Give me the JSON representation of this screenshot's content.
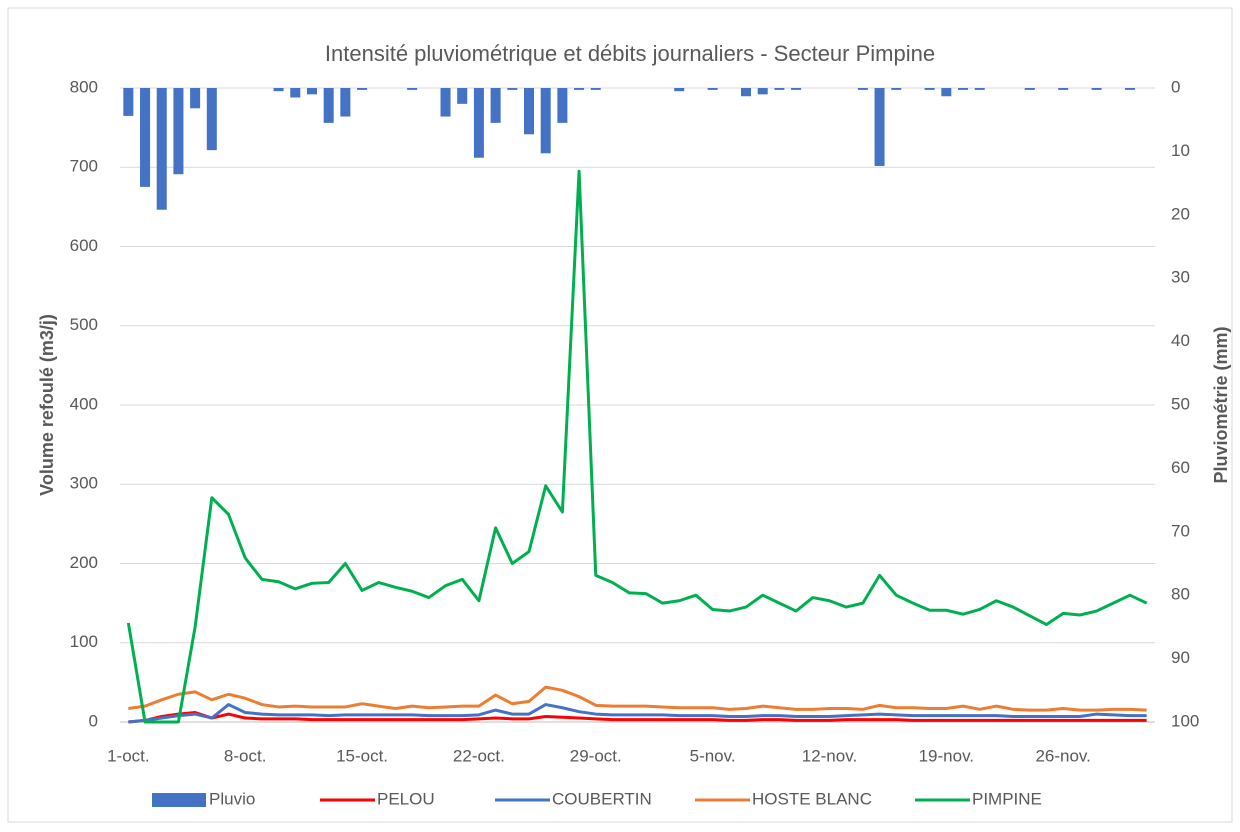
{
  "chart_data": {
    "type": "bar_line",
    "title": "Intensité pluviométrique et débits journaliers - Secteur Pimpine",
    "y_label": "Volume refoulé (m3/j)",
    "y2_label": "Pluviométrie (mm)",
    "categories": [
      "1-oct.",
      null,
      null,
      null,
      null,
      null,
      null,
      "8-oct.",
      null,
      null,
      null,
      null,
      null,
      null,
      "15-oct.",
      null,
      null,
      null,
      null,
      null,
      null,
      "22-oct.",
      null,
      null,
      null,
      null,
      null,
      null,
      "29-oct.",
      null,
      null,
      null,
      null,
      null,
      null,
      "5-nov.",
      null,
      null,
      null,
      null,
      null,
      null,
      "12-nov.",
      null,
      null,
      null,
      null,
      null,
      null,
      "19-nov.",
      null,
      null,
      null,
      null,
      null,
      null,
      "26-nov.",
      null,
      null,
      null,
      null,
      null
    ],
    "ylim": [
      0,
      800
    ],
    "yticks": [
      0,
      100,
      200,
      300,
      400,
      500,
      600,
      700,
      800
    ],
    "y2lim": [
      100,
      0
    ],
    "y2ticks": [
      0,
      10,
      20,
      30,
      40,
      50,
      60,
      70,
      80,
      90,
      100
    ],
    "grid": true,
    "legend": "bottom",
    "series": [
      {
        "name": "Pluvio",
        "type": "bar",
        "axis": "y2",
        "color": "#4472c4",
        "values": [
          4.4,
          15.6,
          19.2,
          13.6,
          3.2,
          9.8,
          0,
          0,
          0,
          0.5,
          1.5,
          1,
          5.5,
          4.5,
          0.3,
          0,
          0,
          0.3,
          0,
          4.5,
          2.5,
          11,
          5.5,
          0.3,
          7.3,
          10.3,
          5.5,
          0.3,
          0.3,
          0,
          0,
          0,
          0,
          0.5,
          0,
          0.3,
          0,
          1.3,
          1,
          0.3,
          0.3,
          0,
          0,
          0,
          0.3,
          12.3,
          0.3,
          0,
          0.3,
          1.3,
          0.3,
          0.3,
          0,
          0,
          0.3,
          0,
          0.3,
          0,
          0.3,
          0,
          0.3,
          0
        ]
      },
      {
        "name": "PELOU",
        "type": "line",
        "color": "#ff0000",
        "values": [
          0,
          2,
          7,
          10,
          12,
          5,
          10,
          5,
          4,
          4,
          4,
          3,
          3,
          3,
          3,
          3,
          3,
          3,
          3,
          3,
          3,
          4,
          5,
          4,
          4,
          7,
          6,
          5,
          4,
          3,
          3,
          3,
          3,
          3,
          3,
          3,
          2,
          2,
          3,
          3,
          2,
          2,
          2,
          3,
          3,
          3,
          3,
          2,
          2,
          2,
          2,
          2,
          2,
          2,
          2,
          2,
          2,
          2,
          2,
          2,
          2,
          2
        ]
      },
      {
        "name": "COUBERTIN",
        "type": "line",
        "color": "#4472c4",
        "values": [
          0,
          2,
          5,
          8,
          10,
          5,
          22,
          12,
          10,
          9,
          9,
          9,
          8,
          9,
          9,
          9,
          9,
          9,
          8,
          8,
          8,
          9,
          15,
          10,
          10,
          22,
          18,
          13,
          10,
          9,
          9,
          9,
          9,
          8,
          8,
          8,
          7,
          7,
          8,
          8,
          7,
          7,
          7,
          8,
          9,
          10,
          9,
          8,
          8,
          8,
          8,
          8,
          8,
          7,
          7,
          7,
          7,
          7,
          10,
          9,
          8,
          8
        ]
      },
      {
        "name": "HOSTE BLANC",
        "type": "line",
        "color": "#ed7d31",
        "values": [
          17,
          20,
          28,
          35,
          38,
          28,
          35,
          30,
          22,
          19,
          20,
          19,
          19,
          19,
          23,
          20,
          17,
          20,
          18,
          19,
          20,
          20,
          34,
          23,
          26,
          44,
          40,
          32,
          21,
          20,
          20,
          20,
          19,
          18,
          18,
          18,
          16,
          17,
          20,
          18,
          16,
          16,
          17,
          17,
          16,
          21,
          18,
          18,
          17,
          17,
          20,
          16,
          20,
          16,
          15,
          15,
          17,
          15,
          15,
          16,
          16,
          15
        ]
      },
      {
        "name": "PIMPINE",
        "type": "line",
        "color": "#00b050",
        "values": [
          125,
          0,
          0,
          0,
          120,
          283,
          262,
          207,
          180,
          177,
          168,
          175,
          176,
          200,
          166,
          176,
          170,
          165,
          157,
          172,
          180,
          153,
          245,
          200,
          215,
          298,
          265,
          695,
          185,
          176,
          163,
          162,
          150,
          153,
          160,
          142,
          140,
          145,
          160,
          150,
          140,
          157,
          153,
          145,
          150,
          185,
          160,
          150,
          141,
          141,
          136,
          142,
          153,
          145,
          134,
          123,
          137,
          135,
          140,
          150,
          160,
          150
        ]
      }
    ]
  }
}
